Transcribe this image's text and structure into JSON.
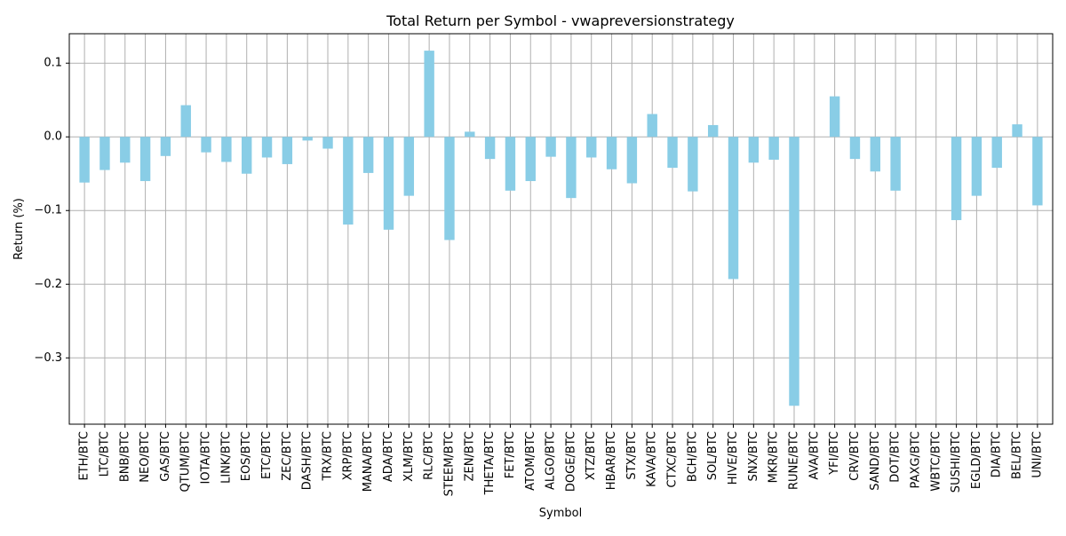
{
  "chart_data": {
    "type": "bar",
    "title": "Total Return per Symbol - vwapreversionstrategy",
    "xlabel": "Symbol",
    "ylabel": "Return (%)",
    "ylim": [
      -0.39,
      0.14
    ],
    "yticks": [
      0.1,
      0.0,
      -0.1,
      -0.2,
      -0.3
    ],
    "ytick_labels": [
      "0.1",
      "0.0",
      "−0.1",
      "−0.2",
      "−0.3"
    ],
    "grid": true,
    "bar_color": "#89cde6",
    "categories": [
      "ETH/BTC",
      "LTC/BTC",
      "BNB/BTC",
      "NEO/BTC",
      "GAS/BTC",
      "QTUM/BTC",
      "IOTA/BTC",
      "LINK/BTC",
      "EOS/BTC",
      "ETC/BTC",
      "ZEC/BTC",
      "DASH/BTC",
      "TRX/BTC",
      "XRP/BTC",
      "MANA/BTC",
      "ADA/BTC",
      "XLM/BTC",
      "RLC/BTC",
      "STEEM/BTC",
      "ZEN/BTC",
      "THETA/BTC",
      "FET/BTC",
      "ATOM/BTC",
      "ALGO/BTC",
      "DOGE/BTC",
      "XTZ/BTC",
      "HBAR/BTC",
      "STX/BTC",
      "KAVA/BTC",
      "CTXC/BTC",
      "BCH/BTC",
      "SOL/BTC",
      "HIVE/BTC",
      "SNX/BTC",
      "MKR/BTC",
      "RUNE/BTC",
      "AVA/BTC",
      "YFI/BTC",
      "CRV/BTC",
      "SAND/BTC",
      "DOT/BTC",
      "PAXG/BTC",
      "WBTC/BTC",
      "SUSHI/BTC",
      "EGLD/BTC",
      "DIA/BTC",
      "BEL/BTC",
      "UNI/BTC"
    ],
    "values": [
      -0.062,
      -0.045,
      -0.035,
      -0.06,
      -0.026,
      0.043,
      -0.021,
      -0.034,
      -0.05,
      -0.028,
      -0.037,
      -0.005,
      -0.016,
      -0.119,
      -0.049,
      -0.126,
      -0.08,
      0.117,
      -0.14,
      0.007,
      -0.03,
      -0.073,
      -0.06,
      -0.027,
      -0.083,
      -0.028,
      -0.044,
      -0.063,
      0.031,
      -0.042,
      -0.074,
      0.016,
      -0.193,
      -0.035,
      -0.031,
      -0.365,
      0.0,
      0.055,
      -0.03,
      -0.047,
      -0.073,
      0.0,
      0.0,
      -0.113,
      -0.08,
      -0.042,
      0.017,
      -0.093
    ]
  }
}
